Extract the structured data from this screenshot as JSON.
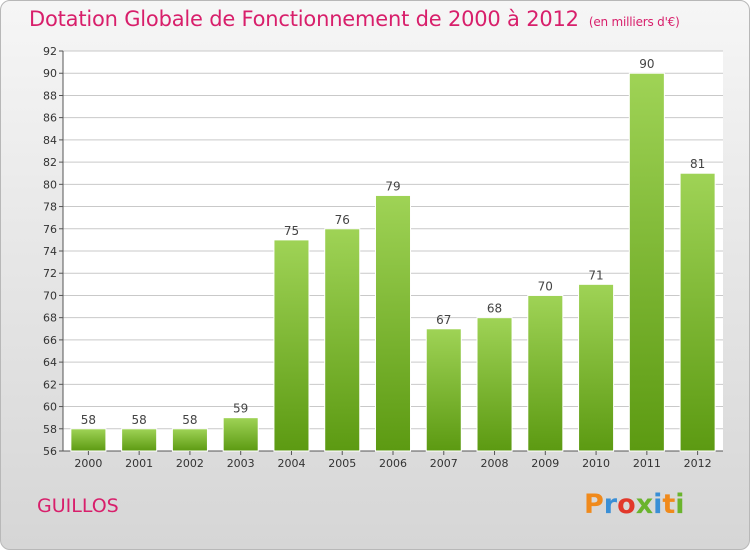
{
  "header": {
    "title": "Dotation Globale de Fonctionnement de 2000 à 2012",
    "subtitle": "(en milliers d'€)"
  },
  "footer": {
    "commune": "GUILLOS",
    "logo_letters": [
      "P",
      "r",
      "o",
      "x",
      "i",
      "t",
      "i"
    ],
    "logo_colors": [
      "#f08a1c",
      "#3a8fd6",
      "#e2382b",
      "#6ab42d",
      "#3a8fd6",
      "#f08a1c",
      "#6ab42d"
    ]
  },
  "colors": {
    "title": "#d81f6b",
    "bar_light": "#9fd356",
    "bar_dark": "#5c9a12",
    "grid": "#c9c9c9"
  },
  "chart_data": {
    "type": "bar",
    "title": "Dotation Globale de Fonctionnement de 2000 à 2012",
    "subtitle": "(en milliers d'€)",
    "categories": [
      "2000",
      "2001",
      "2002",
      "2003",
      "2004",
      "2005",
      "2006",
      "2007",
      "2008",
      "2009",
      "2010",
      "2011",
      "2012"
    ],
    "values": [
      58,
      58,
      58,
      59,
      75,
      76,
      79,
      67,
      68,
      70,
      71,
      90,
      81
    ],
    "ylim": [
      56,
      92
    ],
    "yticks": [
      56,
      58,
      60,
      62,
      64,
      66,
      68,
      70,
      72,
      74,
      76,
      78,
      80,
      82,
      84,
      86,
      88,
      90,
      92
    ],
    "grid": true,
    "xlabel": "",
    "ylabel": ""
  }
}
